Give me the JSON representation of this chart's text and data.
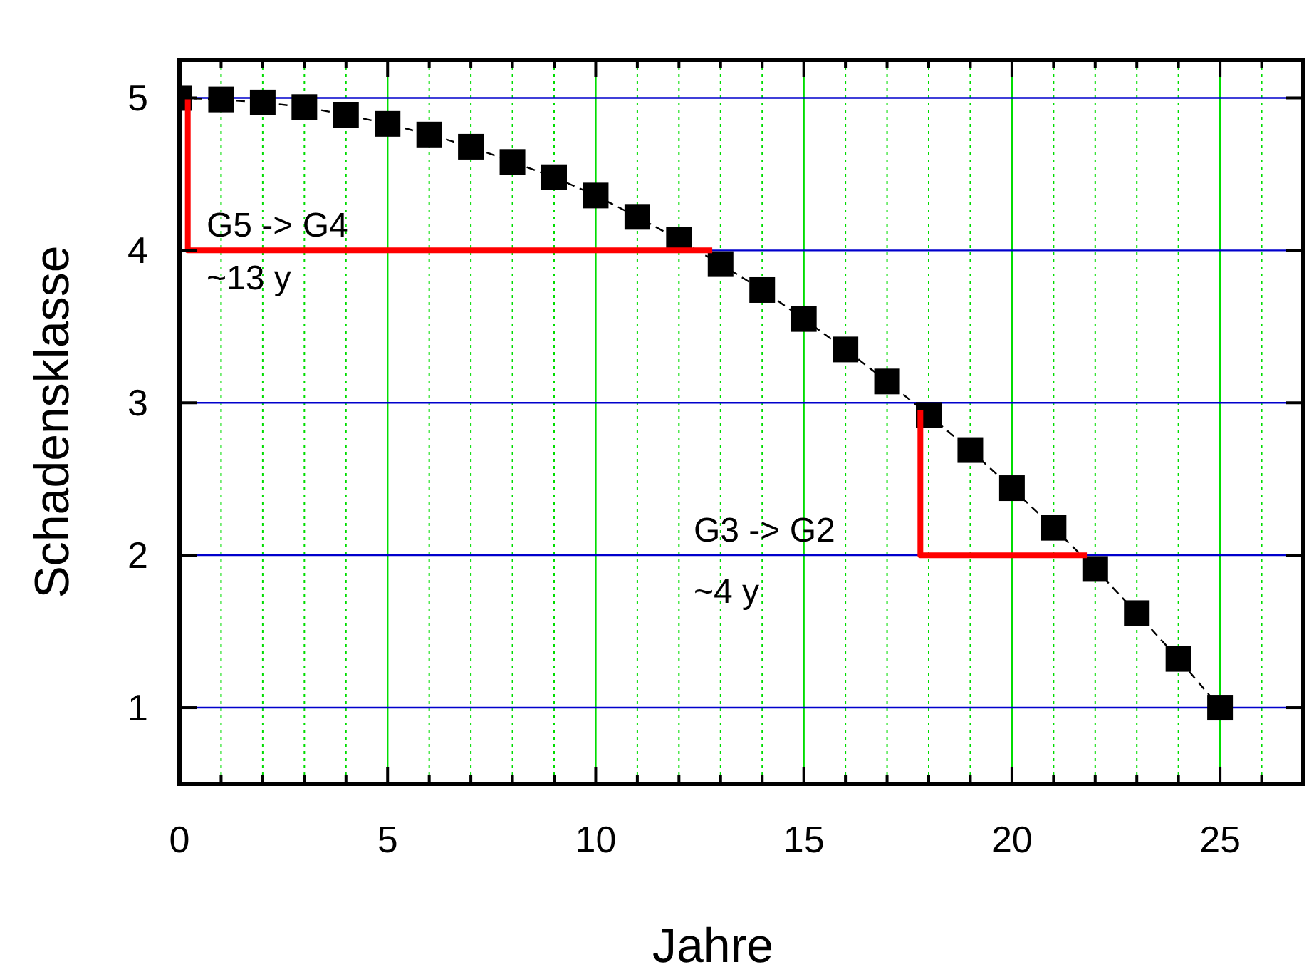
{
  "chart_data": {
    "type": "line",
    "xlabel": "Jahre",
    "ylabel": "Schadensklasse",
    "xlim": [
      0,
      27
    ],
    "ylim": [
      0.5,
      5.25
    ],
    "xticks": [
      0,
      {
        "value": 1,
        "label": null
      },
      {
        "value": 2,
        "label": null
      },
      {
        "value": 3,
        "label": null
      },
      {
        "value": 4,
        "label": null
      },
      5,
      {
        "value": 6,
        "label": null
      },
      {
        "value": 7,
        "label": null
      },
      {
        "value": 8,
        "label": null
      },
      {
        "value": 9,
        "label": null
      },
      10,
      {
        "value": 11,
        "label": null
      },
      {
        "value": 12,
        "label": null
      },
      {
        "value": 13,
        "label": null
      },
      {
        "value": 14,
        "label": null
      },
      15,
      {
        "value": 16,
        "label": null
      },
      {
        "value": 17,
        "label": null
      },
      {
        "value": 18,
        "label": null
      },
      {
        "value": 19,
        "label": null
      },
      20,
      {
        "value": 21,
        "label": null
      },
      {
        "value": 22,
        "label": null
      },
      {
        "value": 23,
        "label": null
      },
      {
        "value": 24,
        "label": null
      },
      25,
      {
        "value": 26,
        "label": null
      }
    ],
    "yticks": [
      1,
      2,
      3,
      4,
      5
    ],
    "grid": true,
    "series": [
      {
        "color": "#000000",
        "marker": "square",
        "line_style": "dashed",
        "x": [
          0,
          1,
          2,
          3,
          4,
          5,
          6,
          7,
          8,
          9,
          10,
          11,
          12,
          13,
          14,
          15,
          16,
          17,
          18,
          19,
          20,
          21,
          22,
          23,
          24,
          25
        ],
        "values": [
          5.0,
          4.99,
          4.97,
          4.94,
          4.89,
          4.83,
          4.76,
          4.68,
          4.58,
          4.48,
          4.36,
          4.22,
          4.07,
          3.91,
          3.74,
          3.55,
          3.35,
          3.14,
          2.92,
          2.69,
          2.44,
          2.18,
          1.91,
          1.62,
          1.32,
          1.0
        ]
      },
      {
        "color": "#ff0000",
        "marker": "none",
        "line_style": "solid",
        "x": [
          0.2,
          0.2,
          12.8
        ],
        "values": [
          5,
          4,
          4
        ]
      },
      {
        "color": "#ff0000",
        "marker": "none",
        "line_style": "solid",
        "x": [
          17.8,
          17.8,
          21.8
        ],
        "values": [
          2.95,
          2,
          2
        ]
      }
    ],
    "annotations": [
      "G5 -> G4",
      "~13 y",
      "G3 -> G2",
      "~4 y"
    ]
  }
}
